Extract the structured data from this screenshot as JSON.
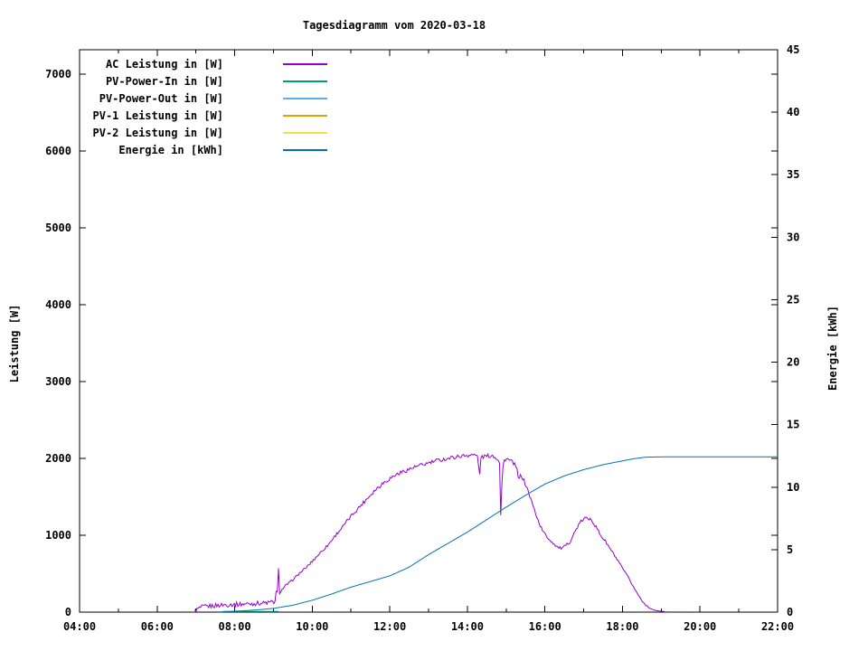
{
  "chart_data": {
    "type": "line",
    "title": "Tagesdiagramm vom 2020-03-18",
    "grid": false,
    "legend_position": "top-left-inside",
    "x_axis": {
      "unit": "time-of-day",
      "range_hours": [
        4,
        22
      ],
      "tick_hours": [
        4,
        6,
        8,
        10,
        12,
        14,
        16,
        18,
        20,
        22
      ],
      "tick_labels": [
        "04:00",
        "06:00",
        "08:00",
        "10:00",
        "12:00",
        "14:00",
        "16:00",
        "18:00",
        "20:00",
        "22:00"
      ],
      "minor_tick_hours": [
        5,
        7,
        9,
        11,
        13,
        15,
        17,
        19,
        21
      ]
    },
    "y_axis_left": {
      "label": "Leistung [W]",
      "ticks": [
        0,
        1000,
        2000,
        3000,
        4000,
        5000,
        6000,
        7000
      ],
      "range": [
        0,
        7320
      ]
    },
    "y_axis_right": {
      "label": "Energie [kWh]",
      "ticks": [
        0,
        5,
        10,
        15,
        20,
        25,
        30,
        35,
        40,
        45
      ],
      "range": [
        0,
        45
      ]
    },
    "series": [
      {
        "name": "AC Leistung in [W]",
        "color": "#9400d3",
        "axis": "left",
        "style": "noisy",
        "points": [
          [
            6.97,
            10
          ],
          [
            7.0,
            25
          ],
          [
            7.1,
            55
          ],
          [
            7.2,
            70
          ],
          [
            7.3,
            75
          ],
          [
            7.4,
            80
          ],
          [
            7.5,
            85
          ],
          [
            7.6,
            90
          ],
          [
            7.7,
            95
          ],
          [
            7.8,
            95
          ],
          [
            7.9,
            100
          ],
          [
            8.0,
            100
          ],
          [
            8.2,
            105
          ],
          [
            8.4,
            110
          ],
          [
            8.6,
            115
          ],
          [
            8.8,
            120
          ],
          [
            9.0,
            130
          ],
          [
            9.05,
            145
          ],
          [
            9.08,
            320
          ],
          [
            9.11,
            230
          ],
          [
            9.13,
            560
          ],
          [
            9.16,
            250
          ],
          [
            9.2,
            280
          ],
          [
            9.3,
            340
          ],
          [
            9.4,
            380
          ],
          [
            9.5,
            420
          ],
          [
            9.6,
            470
          ],
          [
            9.7,
            520
          ],
          [
            9.8,
            560
          ],
          [
            9.9,
            610
          ],
          [
            10.0,
            660
          ],
          [
            10.2,
            770
          ],
          [
            10.4,
            870
          ],
          [
            10.6,
            1000
          ],
          [
            10.8,
            1120
          ],
          [
            11.0,
            1250
          ],
          [
            11.2,
            1360
          ],
          [
            11.4,
            1470
          ],
          [
            11.6,
            1580
          ],
          [
            11.8,
            1670
          ],
          [
            12.0,
            1740
          ],
          [
            12.2,
            1800
          ],
          [
            12.4,
            1840
          ],
          [
            12.6,
            1880
          ],
          [
            12.8,
            1910
          ],
          [
            13.0,
            1940
          ],
          [
            13.2,
            1970
          ],
          [
            13.4,
            1990
          ],
          [
            13.6,
            2010
          ],
          [
            13.8,
            2030
          ],
          [
            14.0,
            2040
          ],
          [
            14.1,
            2050
          ],
          [
            14.2,
            2040
          ],
          [
            14.28,
            2030
          ],
          [
            14.31,
            1690
          ],
          [
            14.35,
            2020
          ],
          [
            14.5,
            2030
          ],
          [
            14.65,
            2040
          ],
          [
            14.8,
            1990
          ],
          [
            14.83,
            1950
          ],
          [
            14.86,
            1260
          ],
          [
            14.9,
            1800
          ],
          [
            14.94,
            1970
          ],
          [
            15.0,
            2000
          ],
          [
            15.1,
            1970
          ],
          [
            15.2,
            1940
          ],
          [
            15.28,
            1850
          ],
          [
            15.33,
            1700
          ],
          [
            15.38,
            1800
          ],
          [
            15.45,
            1720
          ],
          [
            15.55,
            1600
          ],
          [
            15.65,
            1450
          ],
          [
            15.75,
            1300
          ],
          [
            15.85,
            1160
          ],
          [
            15.95,
            1050
          ],
          [
            16.05,
            980
          ],
          [
            16.15,
            930
          ],
          [
            16.25,
            880
          ],
          [
            16.35,
            840
          ],
          [
            16.45,
            830
          ],
          [
            16.55,
            870
          ],
          [
            16.65,
            920
          ],
          [
            16.75,
            1020
          ],
          [
            16.85,
            1120
          ],
          [
            16.95,
            1190
          ],
          [
            17.05,
            1230
          ],
          [
            17.12,
            1200
          ],
          [
            17.18,
            1240
          ],
          [
            17.25,
            1160
          ],
          [
            17.35,
            1080
          ],
          [
            17.45,
            990
          ],
          [
            17.55,
            930
          ],
          [
            17.65,
            850
          ],
          [
            17.75,
            770
          ],
          [
            17.85,
            690
          ],
          [
            17.95,
            610
          ],
          [
            18.05,
            530
          ],
          [
            18.15,
            450
          ],
          [
            18.25,
            360
          ],
          [
            18.35,
            270
          ],
          [
            18.45,
            190
          ],
          [
            18.55,
            120
          ],
          [
            18.65,
            70
          ],
          [
            18.75,
            40
          ],
          [
            18.85,
            22
          ],
          [
            18.95,
            14
          ],
          [
            19.05,
            8
          ],
          [
            19.15,
            4
          ]
        ]
      },
      {
        "name": "PV-Power-In in [W]",
        "color": "#009e73",
        "axis": "left",
        "style": "plain",
        "points": [
          [
            7.7,
            8
          ],
          [
            9.13,
            8
          ]
        ]
      },
      {
        "name": "PV-Power-Out in [W]",
        "color": "#56b4e9",
        "axis": "left",
        "style": "plain",
        "points": []
      },
      {
        "name": "PV-1 Leistung in [W]",
        "color": "#e69f00",
        "axis": "left",
        "style": "plain",
        "points": []
      },
      {
        "name": "PV-2 Leistung in [W]",
        "color": "#f0e442",
        "axis": "left",
        "style": "plain",
        "points": []
      },
      {
        "name": "Energie in [kWh]",
        "color": "#0072b2",
        "axis": "right",
        "style": "smooth",
        "points": [
          [
            7.6,
            0.02
          ],
          [
            8.0,
            0.07
          ],
          [
            8.5,
            0.16
          ],
          [
            9.0,
            0.3
          ],
          [
            9.5,
            0.55
          ],
          [
            10.0,
            0.95
          ],
          [
            10.5,
            1.45
          ],
          [
            11.0,
            2.0
          ],
          [
            11.5,
            2.45
          ],
          [
            12.0,
            2.9
          ],
          [
            12.5,
            3.6
          ],
          [
            13.0,
            4.6
          ],
          [
            13.5,
            5.5
          ],
          [
            14.0,
            6.4
          ],
          [
            14.5,
            7.4
          ],
          [
            15.0,
            8.4
          ],
          [
            15.5,
            9.35
          ],
          [
            16.0,
            10.25
          ],
          [
            16.5,
            10.9
          ],
          [
            17.0,
            11.4
          ],
          [
            17.5,
            11.8
          ],
          [
            18.0,
            12.1
          ],
          [
            18.3,
            12.28
          ],
          [
            18.6,
            12.4
          ],
          [
            19.0,
            12.42
          ],
          [
            20.0,
            12.42
          ],
          [
            22.0,
            12.42
          ]
        ]
      }
    ]
  }
}
